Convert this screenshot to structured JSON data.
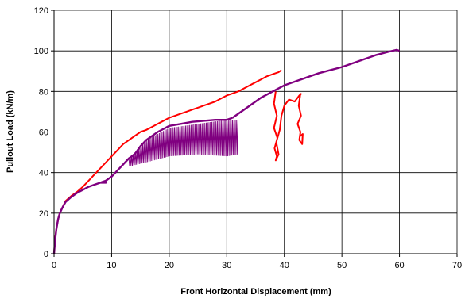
{
  "chart_data": {
    "type": "line",
    "title": "",
    "xlabel": "Front Horizontal Displacement (mm)",
    "ylabel": "Pullout Load (kN/m)",
    "xlim": [
      0,
      70
    ],
    "ylim": [
      0,
      120
    ],
    "x_ticks": [
      0,
      10,
      20,
      30,
      40,
      50,
      60,
      70
    ],
    "y_ticks": [
      0,
      20,
      40,
      60,
      80,
      100,
      120
    ],
    "x_tick_labels": [
      "0",
      "10",
      "20",
      "30",
      "40",
      "50",
      "60",
      "70"
    ],
    "y_tick_labels": [
      "0",
      "20",
      "40",
      "60",
      "80",
      "100",
      "120"
    ],
    "grid": true,
    "legend": "none",
    "series": [
      {
        "color": "#ff0000",
        "segments": [
          [
            [
              0,
              0
            ],
            [
              0.2,
              8
            ],
            [
              0.5,
              14
            ],
            [
              0.8,
              18
            ],
            [
              1,
              20
            ],
            [
              1.5,
              23
            ],
            [
              2,
              26
            ],
            [
              3,
              28.5
            ],
            [
              4,
              30.5
            ],
            [
              5,
              33
            ],
            [
              6,
              36
            ],
            [
              7,
              39
            ],
            [
              8,
              42
            ],
            [
              9,
              45
            ],
            [
              10,
              48
            ],
            [
              11,
              51
            ],
            [
              12,
              54
            ],
            [
              13,
              56
            ],
            [
              14,
              58
            ],
            [
              15,
              60
            ],
            [
              16,
              61
            ],
            [
              17,
              62.5
            ],
            [
              18,
              64
            ],
            [
              19,
              65.5
            ],
            [
              20,
              67
            ],
            [
              21,
              68
            ],
            [
              22,
              69
            ],
            [
              23,
              70
            ],
            [
              24,
              71
            ],
            [
              25,
              72
            ],
            [
              26,
              73
            ],
            [
              27,
              74
            ],
            [
              28,
              75
            ],
            [
              29,
              76.5
            ],
            [
              30,
              78
            ],
            [
              31,
              79
            ],
            [
              32,
              80
            ],
            [
              33,
              81.5
            ],
            [
              34,
              83
            ],
            [
              35,
              84.5
            ],
            [
              36,
              86
            ],
            [
              37,
              87.5
            ],
            [
              38,
              88.5
            ],
            [
              39,
              89.5
            ],
            [
              39.5,
              90.5
            ]
          ],
          [
            [
              38.5,
              80
            ],
            [
              38.2,
              74
            ],
            [
              38.7,
              68
            ],
            [
              38.2,
              62
            ],
            [
              38.8,
              57
            ],
            [
              38.3,
              52
            ],
            [
              38.7,
              48
            ],
            [
              38.5,
              46
            ],
            [
              39,
              49
            ],
            [
              38.6,
              55
            ],
            [
              39.2,
              61
            ],
            [
              39.5,
              68
            ],
            [
              40,
              73
            ],
            [
              40.8,
              76
            ],
            [
              41.8,
              75
            ],
            [
              42.6,
              78
            ],
            [
              43,
              79
            ]
          ],
          [
            [
              42.8,
              79
            ],
            [
              42.5,
              73
            ],
            [
              42.9,
              68
            ],
            [
              42.3,
              64
            ],
            [
              42.8,
              60
            ],
            [
              42.6,
              56
            ],
            [
              43.1,
              54
            ],
            [
              43.2,
              59
            ],
            [
              42.8,
              58
            ]
          ]
        ]
      },
      {
        "color": "#800080",
        "segments": [
          [
            [
              0,
              0
            ],
            [
              0.2,
              7
            ],
            [
              0.4,
              12
            ],
            [
              0.7,
              17
            ],
            [
              1,
              20
            ],
            [
              1.5,
              23
            ],
            [
              2,
              25.5
            ],
            [
              3,
              28
            ],
            [
              4,
              30
            ],
            [
              5,
              31.5
            ],
            [
              6,
              33
            ],
            [
              7,
              34
            ],
            [
              8,
              35
            ],
            [
              9,
              35
            ],
            [
              8,
              35
            ],
            [
              9,
              36
            ],
            [
              10,
              38
            ],
            [
              11,
              41
            ],
            [
              12,
              44
            ],
            [
              13,
              47
            ],
            [
              14,
              49
            ]
          ],
          [
            [
              14,
              49
            ],
            [
              15,
              53
            ],
            [
              16,
              56
            ],
            [
              17,
              58
            ],
            [
              18,
              60
            ],
            [
              19,
              61.5
            ],
            [
              20,
              63
            ],
            [
              22,
              64
            ],
            [
              24,
              65
            ],
            [
              26,
              65.5
            ],
            [
              28,
              66
            ],
            [
              30,
              66
            ],
            [
              31,
              67
            ]
          ],
          [
            [
              31,
              67
            ],
            [
              32,
              69
            ],
            [
              33,
              71
            ],
            [
              34,
              73
            ],
            [
              35,
              75
            ],
            [
              36,
              77
            ],
            [
              37,
              78.5
            ],
            [
              38,
              80
            ],
            [
              40,
              83
            ],
            [
              42,
              85
            ],
            [
              44,
              87
            ],
            [
              46,
              89
            ],
            [
              48,
              90.5
            ],
            [
              50,
              92
            ],
            [
              52,
              94
            ],
            [
              54,
              96
            ],
            [
              56,
              98
            ],
            [
              58,
              99.5
            ],
            [
              59.5,
              100.5
            ],
            [
              60,
              100
            ]
          ]
        ],
        "band": {
          "x_start": 13,
          "x_end": 32,
          "lower": [
            [
              13,
              43
            ],
            [
              16,
              45
            ],
            [
              20,
              48
            ],
            [
              25,
              49
            ],
            [
              30,
              48
            ],
            [
              32,
              49
            ]
          ],
          "upper": [
            [
              13,
              47
            ],
            [
              16,
              56
            ],
            [
              20,
              62
            ],
            [
              25,
              64
            ],
            [
              30,
              66
            ],
            [
              32,
              66
            ]
          ]
        }
      }
    ]
  }
}
